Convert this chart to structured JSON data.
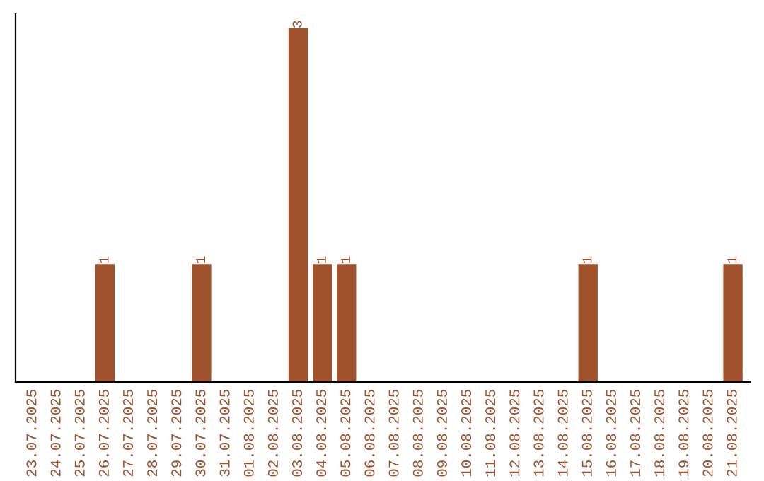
{
  "chart_data": {
    "type": "bar",
    "categories": [
      "23.07.2025",
      "24.07.2025",
      "25.07.2025",
      "26.07.2025",
      "27.07.2025",
      "28.07.2025",
      "29.07.2025",
      "30.07.2025",
      "31.07.2025",
      "01.08.2025",
      "02.08.2025",
      "03.08.2025",
      "04.08.2025",
      "05.08.2025",
      "06.08.2025",
      "07.08.2025",
      "08.08.2025",
      "09.08.2025",
      "10.08.2025",
      "11.08.2025",
      "12.08.2025",
      "13.08.2025",
      "14.08.2025",
      "15.08.2025",
      "16.08.2025",
      "17.08.2025",
      "18.08.2025",
      "19.08.2025",
      "20.08.2025",
      "21.08.2025"
    ],
    "values": [
      0,
      0,
      0,
      1,
      0,
      0,
      0,
      1,
      0,
      0,
      0,
      3,
      1,
      1,
      0,
      0,
      0,
      0,
      0,
      0,
      0,
      0,
      0,
      1,
      0,
      0,
      0,
      0,
      0,
      1
    ],
    "value_labels": [
      null,
      null,
      null,
      "1",
      null,
      null,
      null,
      "1",
      null,
      null,
      null,
      "3",
      "1",
      "1",
      null,
      null,
      null,
      null,
      null,
      null,
      null,
      null,
      null,
      "1",
      null,
      null,
      null,
      null,
      null,
      "1"
    ],
    "color": "#a0522d",
    "tick_labels": "x",
    "grid": false,
    "legend": false
  }
}
